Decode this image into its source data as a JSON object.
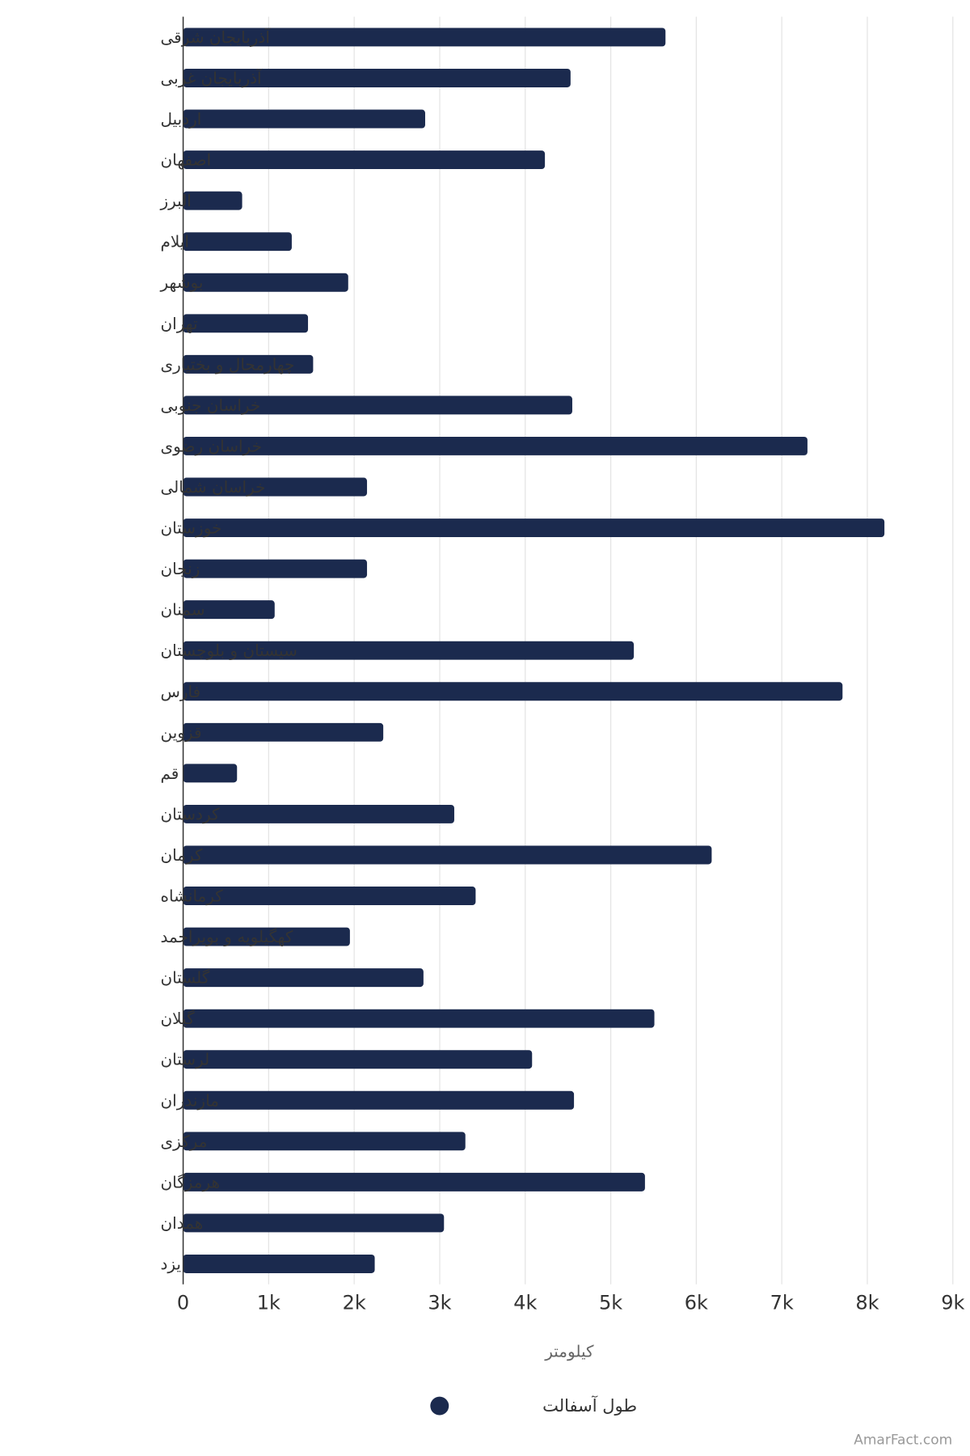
{
  "chart_data": {
    "type": "bar",
    "orientation": "horizontal",
    "categories": [
      "آذربایجان شرقی",
      "آذربایجان غربی",
      "اردبیل",
      "اصفهان",
      "البرز",
      "ایلام",
      "بوشهر",
      "تهران",
      "چهارمحال و بختیاری",
      "خراسان جنوبی",
      "خراسان رضوی",
      "خراسان شمالی",
      "خوزستان",
      "زنجان",
      "سمنان",
      "سیستان و بلوچستان",
      "فارس",
      "قزوین",
      "قم",
      "کردستان",
      "کرمان",
      "کرمانشاه",
      "کهگیلویه و بویراحمد",
      "گلستان",
      "گیلان",
      "لرستان",
      "مازندران",
      "مرکزی",
      "هرمزگان",
      "همدان",
      "یزد"
    ],
    "series": [
      {
        "name": "طول آسفالت",
        "color": "#1b2a4e",
        "values": [
          5640,
          4530,
          2830,
          4230,
          690,
          1270,
          1930,
          1460,
          1520,
          4550,
          7300,
          2150,
          8200,
          2150,
          1070,
          5270,
          7710,
          2340,
          630,
          3170,
          6180,
          3420,
          1950,
          2810,
          5510,
          4080,
          4570,
          3300,
          5400,
          3050,
          2240
        ]
      }
    ],
    "xlabel": "کیلومتر",
    "xlim": [
      0,
      9000
    ],
    "xticks": [
      0,
      1000,
      2000,
      3000,
      4000,
      5000,
      6000,
      7000,
      8000,
      9000
    ],
    "xtick_labels": [
      "0",
      "1k",
      "2k",
      "3k",
      "4k",
      "5k",
      "6k",
      "7k",
      "8k",
      "9k"
    ],
    "grid": true,
    "legend_position": "bottom-center"
  },
  "credit": "AmarFact.com"
}
